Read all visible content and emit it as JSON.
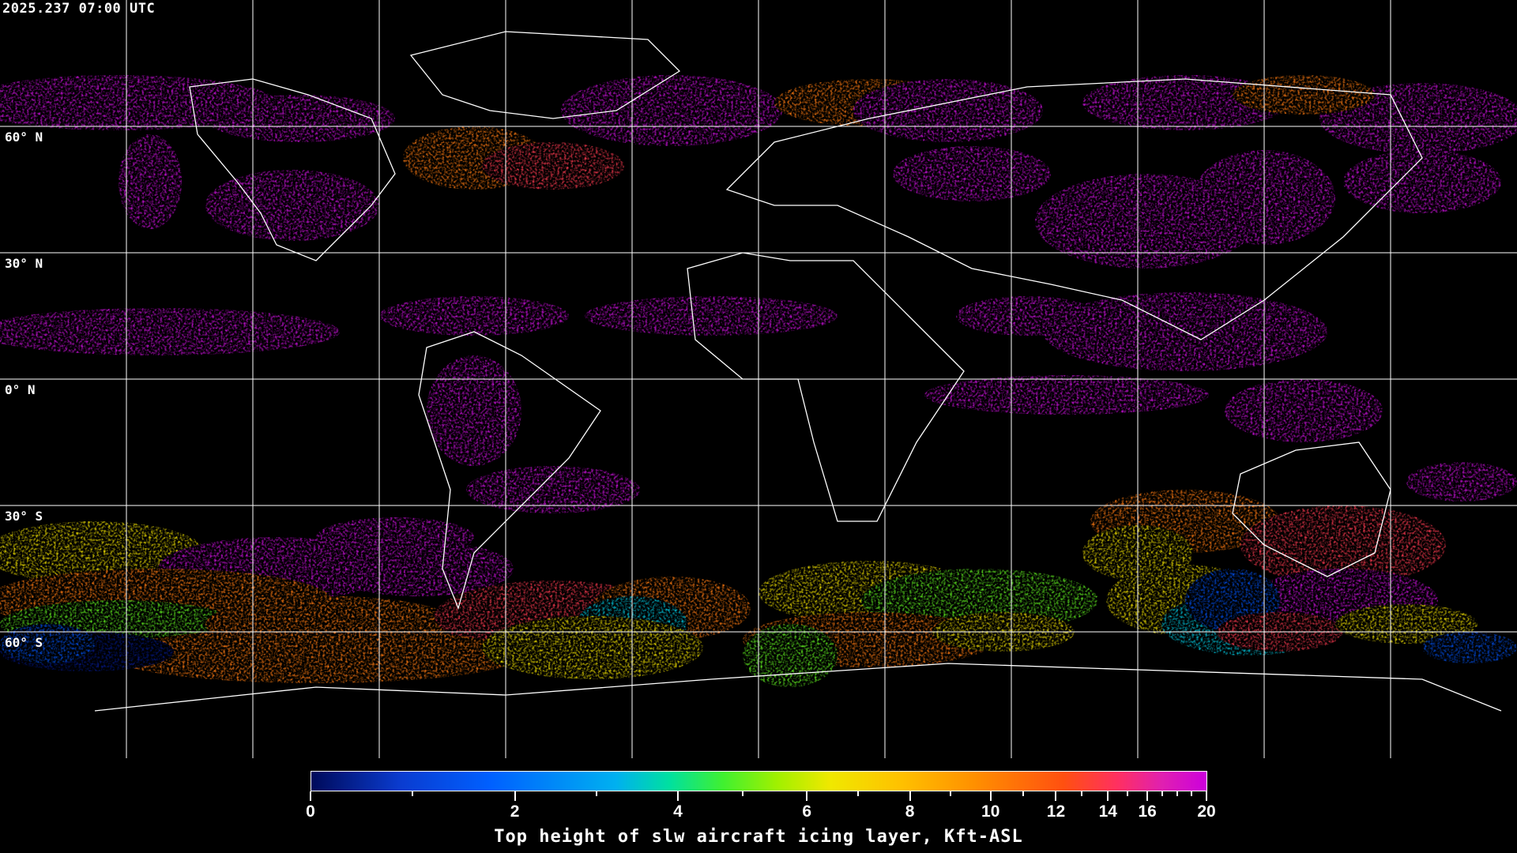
{
  "timestamp": "2025.237 07:00 UTC",
  "map": {
    "projection": "equirectangular",
    "background": "#000000",
    "grid_color": "#ffffff",
    "coastline_color": "#ffffff",
    "lat_labels": [
      "60° N",
      "30° N",
      "0° N",
      "30° S",
      "60° S"
    ]
  },
  "colorbar": {
    "title": "Top height of slw aircraft icing layer, Kft-ASL",
    "min": 0,
    "max": 20,
    "major_ticks": [
      {
        "value": 0,
        "label": "0"
      },
      {
        "value": 2,
        "label": "2"
      },
      {
        "value": 4,
        "label": "4"
      },
      {
        "value": 6,
        "label": "6"
      },
      {
        "value": 8,
        "label": "8"
      },
      {
        "value": 10,
        "label": "10"
      },
      {
        "value": 12,
        "label": "12"
      },
      {
        "value": 14,
        "label": "14"
      },
      {
        "value": 16,
        "label": "16"
      },
      {
        "value": 20,
        "label": "20"
      }
    ],
    "minor_ticks": [
      1,
      3,
      5,
      7,
      9,
      11,
      13,
      15,
      17,
      18,
      19
    ],
    "colors": [
      "#000a5a",
      "#0060ff",
      "#00b0f0",
      "#00e0a0",
      "#a0f000",
      "#f0e800",
      "#ffc000",
      "#ff9000",
      "#ff5010",
      "#ff3060",
      "#cc00dd"
    ]
  }
}
